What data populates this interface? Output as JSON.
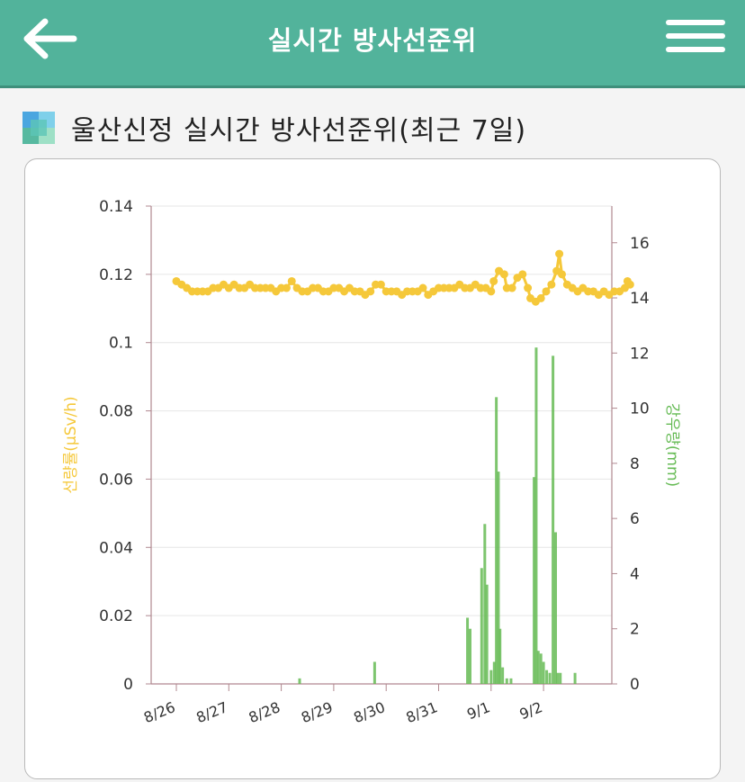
{
  "header": {
    "title": "실시간 방사선준위"
  },
  "section": {
    "title": "울산신정 실시간 방사선준위(최근 7일)"
  },
  "colors": {
    "header": "#52b39b",
    "dose": "#f5c83a",
    "rain": "#66bb55"
  },
  "icons": {
    "back": "arrow-left-icon",
    "menu": "hamburger-menu-icon",
    "section": "colored-squares-icon"
  },
  "chart_data": {
    "type": "line+bar",
    "left_axis": {
      "label": "선량률(μSv/h)",
      "ticks": [
        "0.14",
        "0.12",
        "0.1",
        "0.08",
        "0.06",
        "0.04",
        "0.02",
        "0"
      ],
      "range": [
        0,
        0.14
      ]
    },
    "right_axis": {
      "label": "강우량(mm)",
      "ticks": [
        "16",
        "14",
        "12",
        "10",
        "8",
        "6",
        "4",
        "2",
        "0"
      ],
      "range": [
        0,
        17.33
      ]
    },
    "x_labels": [
      "8/26",
      "8/27",
      "8/28",
      "8/29",
      "8/30",
      "8/31",
      "9/1",
      "9/2"
    ],
    "x_range_days": [
      0,
      7.9
    ],
    "dose_series": {
      "name": "선량률(μSv/h)",
      "points": [
        [
          0.0,
          0.118
        ],
        [
          0.1,
          0.117
        ],
        [
          0.2,
          0.116
        ],
        [
          0.3,
          0.115
        ],
        [
          0.4,
          0.115
        ],
        [
          0.5,
          0.115
        ],
        [
          0.6,
          0.115
        ],
        [
          0.7,
          0.116
        ],
        [
          0.8,
          0.116
        ],
        [
          0.9,
          0.117
        ],
        [
          1.0,
          0.116
        ],
        [
          1.1,
          0.117
        ],
        [
          1.2,
          0.116
        ],
        [
          1.3,
          0.116
        ],
        [
          1.4,
          0.117
        ],
        [
          1.5,
          0.116
        ],
        [
          1.6,
          0.116
        ],
        [
          1.7,
          0.116
        ],
        [
          1.8,
          0.116
        ],
        [
          1.9,
          0.115
        ],
        [
          2.0,
          0.116
        ],
        [
          2.1,
          0.116
        ],
        [
          2.2,
          0.118
        ],
        [
          2.3,
          0.116
        ],
        [
          2.4,
          0.115
        ],
        [
          2.5,
          0.115
        ],
        [
          2.6,
          0.116
        ],
        [
          2.7,
          0.116
        ],
        [
          2.8,
          0.115
        ],
        [
          2.9,
          0.115
        ],
        [
          3.0,
          0.116
        ],
        [
          3.1,
          0.116
        ],
        [
          3.2,
          0.115
        ],
        [
          3.3,
          0.116
        ],
        [
          3.4,
          0.115
        ],
        [
          3.5,
          0.115
        ],
        [
          3.6,
          0.114
        ],
        [
          3.7,
          0.115
        ],
        [
          3.8,
          0.117
        ],
        [
          3.9,
          0.117
        ],
        [
          4.0,
          0.115
        ],
        [
          4.1,
          0.115
        ],
        [
          4.2,
          0.115
        ],
        [
          4.3,
          0.114
        ],
        [
          4.4,
          0.115
        ],
        [
          4.5,
          0.115
        ],
        [
          4.6,
          0.115
        ],
        [
          4.7,
          0.116
        ],
        [
          4.8,
          0.114
        ],
        [
          4.9,
          0.115
        ],
        [
          5.0,
          0.116
        ],
        [
          5.1,
          0.116
        ],
        [
          5.2,
          0.116
        ],
        [
          5.3,
          0.116
        ],
        [
          5.4,
          0.117
        ],
        [
          5.5,
          0.116
        ],
        [
          5.6,
          0.116
        ],
        [
          5.7,
          0.117
        ],
        [
          5.8,
          0.116
        ],
        [
          5.9,
          0.116
        ],
        [
          6.0,
          0.115
        ],
        [
          6.05,
          0.118
        ],
        [
          6.15,
          0.121
        ],
        [
          6.25,
          0.12
        ],
        [
          6.3,
          0.116
        ],
        [
          6.4,
          0.116
        ],
        [
          6.5,
          0.119
        ],
        [
          6.6,
          0.12
        ],
        [
          6.7,
          0.116
        ],
        [
          6.75,
          0.113
        ],
        [
          6.85,
          0.112
        ],
        [
          6.95,
          0.113
        ],
        [
          7.05,
          0.115
        ],
        [
          7.15,
          0.117
        ],
        [
          7.25,
          0.121
        ],
        [
          7.3,
          0.126
        ],
        [
          7.35,
          0.12
        ],
        [
          7.45,
          0.117
        ],
        [
          7.55,
          0.116
        ],
        [
          7.65,
          0.115
        ],
        [
          7.75,
          0.116
        ],
        [
          7.85,
          0.115
        ],
        [
          7.95,
          0.115
        ],
        [
          8.05,
          0.114
        ],
        [
          8.15,
          0.115
        ],
        [
          8.25,
          0.114
        ],
        [
          8.35,
          0.115
        ],
        [
          8.45,
          0.115
        ],
        [
          8.55,
          0.116
        ],
        [
          8.6,
          0.118
        ],
        [
          8.65,
          0.117
        ]
      ]
    },
    "rain_series": {
      "name": "강우량(mm)",
      "bars": [
        [
          2.35,
          0.2
        ],
        [
          3.78,
          0.8
        ],
        [
          5.55,
          2.4
        ],
        [
          5.6,
          2.0
        ],
        [
          5.82,
          4.2
        ],
        [
          5.88,
          5.8
        ],
        [
          5.92,
          3.6
        ],
        [
          6.0,
          0.5
        ],
        [
          6.06,
          0.8
        ],
        [
          6.1,
          10.4
        ],
        [
          6.14,
          7.7
        ],
        [
          6.17,
          2.0
        ],
        [
          6.22,
          0.6
        ],
        [
          6.3,
          0.2
        ],
        [
          6.38,
          0.2
        ],
        [
          6.82,
          7.5
        ],
        [
          6.86,
          12.2
        ],
        [
          6.9,
          1.2
        ],
        [
          6.95,
          1.1
        ],
        [
          7.0,
          0.8
        ],
        [
          7.06,
          0.5
        ],
        [
          7.12,
          0.4
        ],
        [
          7.18,
          11.9
        ],
        [
          7.23,
          5.5
        ],
        [
          7.27,
          0.4
        ],
        [
          7.32,
          0.4
        ],
        [
          7.6,
          0.4
        ]
      ]
    }
  }
}
